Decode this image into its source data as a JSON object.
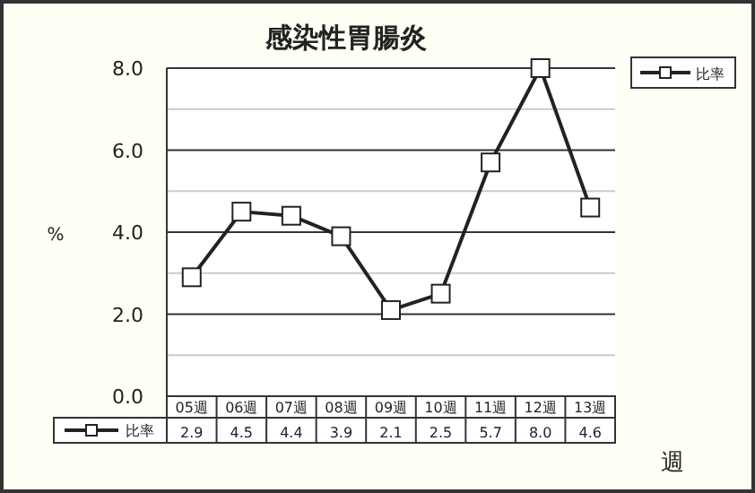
{
  "chart_data": {
    "type": "line",
    "title": "感染性胃腸炎",
    "xlabel": "週",
    "ylabel": "%",
    "categories": [
      "05週",
      "06週",
      "07週",
      "08週",
      "09週",
      "10週",
      "11週",
      "12週",
      "13週"
    ],
    "series": [
      {
        "name": "比率",
        "color": "#222222",
        "values": [
          2.9,
          4.5,
          4.4,
          3.9,
          2.1,
          2.5,
          5.7,
          8.0,
          4.6
        ],
        "value_labels": [
          "2.9",
          "4.5",
          "4.4",
          "3.9",
          "2.1",
          "2.5",
          "5.7",
          "8.0",
          "4.6"
        ]
      }
    ],
    "ylim": [
      0,
      8
    ],
    "yticks": [
      {
        "value": 0,
        "label": "0.0"
      },
      {
        "value": 2,
        "label": "2.0"
      },
      {
        "value": 4,
        "label": "4.0"
      },
      {
        "value": 6,
        "label": "6.0"
      },
      {
        "value": 8,
        "label": "8.0"
      }
    ],
    "grid": true,
    "legend": "top right",
    "marker": "square",
    "line_style": "solid"
  }
}
